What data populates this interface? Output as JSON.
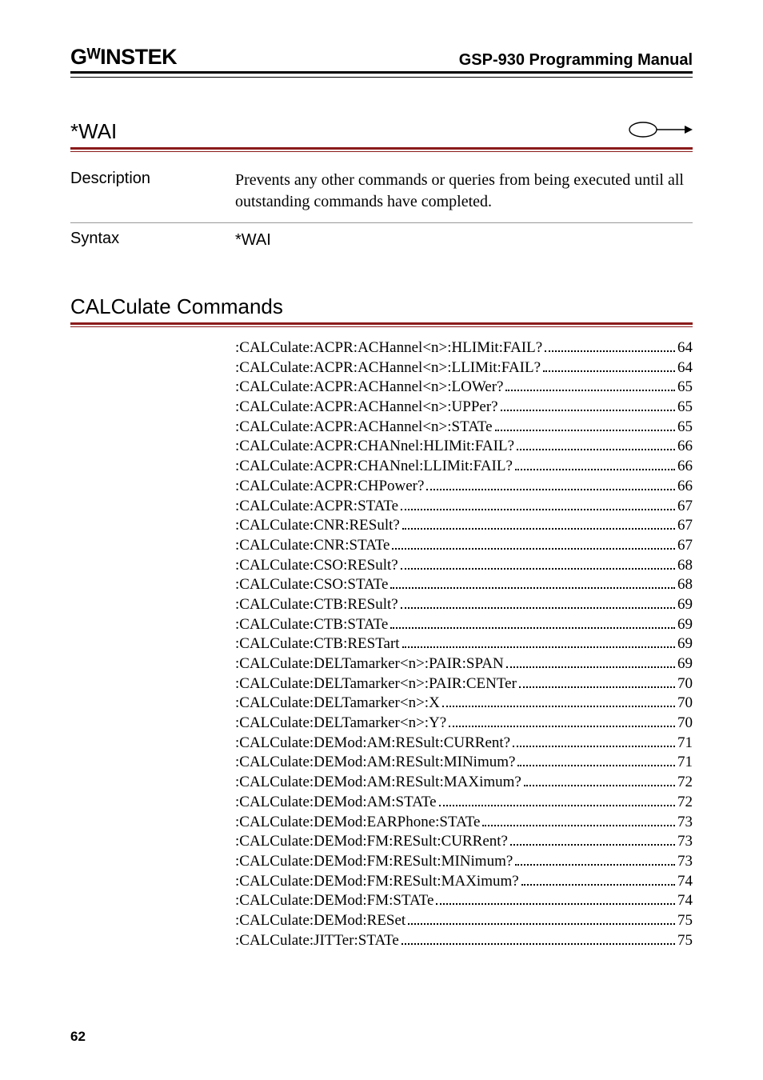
{
  "header": {
    "logo": "GᵂINSTEK",
    "title": "GSP-930 Programming Manual"
  },
  "wai": {
    "title": "*WAI",
    "arrow_glyph": "⬭→",
    "rows": [
      {
        "label": "Description",
        "text": "Prevents any other commands or queries from being executed until all outstanding commands have completed."
      },
      {
        "label": "Syntax",
        "text": "*WAI"
      }
    ]
  },
  "calc": {
    "title": "CALCulate Commands",
    "toc": [
      {
        "label": ":CALCulate:ACPR:ACHannel<n>:HLIMit:FAIL?",
        "page": "64"
      },
      {
        "label": ":CALCulate:ACPR:ACHannel<n>:LLIMit:FAIL?",
        "page": "64"
      },
      {
        "label": ":CALCulate:ACPR:ACHannel<n>:LOWer?",
        "page": "65"
      },
      {
        "label": ":CALCulate:ACPR:ACHannel<n>:UPPer?",
        "page": "65"
      },
      {
        "label": ":CALCulate:ACPR:ACHannel<n>:STATe",
        "page": "65"
      },
      {
        "label": ":CALCulate:ACPR:CHANnel:HLIMit:FAIL?",
        "page": "66"
      },
      {
        "label": ":CALCulate:ACPR:CHANnel:LLIMit:FAIL?",
        "page": "66"
      },
      {
        "label": ":CALCulate:ACPR:CHPower?",
        "page": "66"
      },
      {
        "label": ":CALCulate:ACPR:STATe",
        "page": "67"
      },
      {
        "label": ":CALCulate:CNR:RESult?",
        "page": "67"
      },
      {
        "label": ":CALCulate:CNR:STATe",
        "page": "67"
      },
      {
        "label": ":CALCulate:CSO:RESult?",
        "page": "68"
      },
      {
        "label": ":CALCulate:CSO:STATe",
        "page": "68"
      },
      {
        "label": ":CALCulate:CTB:RESult?",
        "page": "69"
      },
      {
        "label": ":CALCulate:CTB:STATe",
        "page": "69"
      },
      {
        "label": ":CALCulate:CTB:RESTart",
        "page": "69"
      },
      {
        "label": ":CALCulate:DELTamarker<n>:PAIR:SPAN",
        "page": "69"
      },
      {
        "label": ":CALCulate:DELTamarker<n>:PAIR:CENTer",
        "page": "70"
      },
      {
        "label": ":CALCulate:DELTamarker<n>:X",
        "page": "70"
      },
      {
        "label": ":CALCulate:DELTamarker<n>:Y?",
        "page": "70"
      },
      {
        "label": ":CALCulate:DEMod:AM:RESult:CURRent?",
        "page": "71"
      },
      {
        "label": ":CALCulate:DEMod:AM:RESult:MINimum?",
        "page": "71"
      },
      {
        "label": ":CALCulate:DEMod:AM:RESult:MAXimum?",
        "page": "72"
      },
      {
        "label": ":CALCulate:DEMod:AM:STATe",
        "page": "72"
      },
      {
        "label": ":CALCulate:DEMod:EARPhone:STATe",
        "page": "73"
      },
      {
        "label": ":CALCulate:DEMod:FM:RESult:CURRent?",
        "page": "73"
      },
      {
        "label": ":CALCulate:DEMod:FM:RESult:MINimum?",
        "page": "73"
      },
      {
        "label": ":CALCulate:DEMod:FM:RESult:MAXimum?",
        "page": "74"
      },
      {
        "label": ":CALCulate:DEMod:FM:STATe",
        "page": "74"
      },
      {
        "label": ":CALCulate:DEMod:RESet",
        "page": "75"
      },
      {
        "label": ":CALCulate:JITTer:STATe",
        "page": "75"
      }
    ]
  },
  "footer": {
    "page_number": "62"
  },
  "colors": {
    "rule_red": "#8b1a1a",
    "text": "#000000",
    "background": "#ffffff"
  }
}
